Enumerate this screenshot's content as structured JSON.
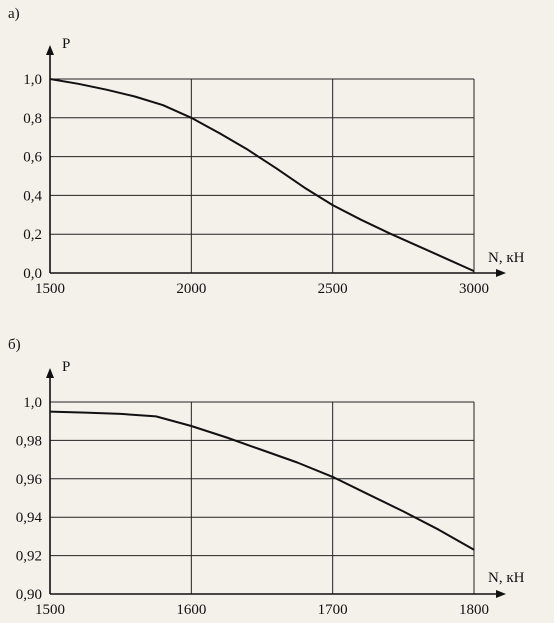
{
  "colors": {
    "background": "#f4f1ea",
    "ink": "#111111",
    "grid": "#222222"
  },
  "chart_data": [
    {
      "panel": "а)",
      "type": "line",
      "xlabel": "N, кН",
      "ylabel": "P",
      "xlim": [
        1500,
        3000
      ],
      "ylim": [
        0.0,
        1.0
      ],
      "x_ticks": [
        1500,
        2000,
        2500,
        3000
      ],
      "x_tick_labels": [
        "1500",
        "2000",
        "2500",
        "3000"
      ],
      "y_ticks": [
        0.0,
        0.2,
        0.4,
        0.6,
        0.8,
        1.0
      ],
      "y_tick_labels": [
        "0,0",
        "0,2",
        "0,4",
        "0,6",
        "0,8",
        "1,0"
      ],
      "grid": true,
      "series": [
        {
          "x": [
            1500,
            1600,
            1700,
            1800,
            1900,
            2000,
            2100,
            2200,
            2300,
            2400,
            2500,
            2600,
            2700,
            2800,
            2900,
            3000
          ],
          "y": [
            1.0,
            0.975,
            0.945,
            0.91,
            0.865,
            0.8,
            0.72,
            0.635,
            0.54,
            0.44,
            0.35,
            0.275,
            0.205,
            0.14,
            0.075,
            0.01
          ]
        }
      ]
    },
    {
      "panel": "б)",
      "type": "line",
      "xlabel": "N, кН",
      "ylabel": "P",
      "xlim": [
        1500,
        1800
      ],
      "ylim": [
        0.9,
        1.0
      ],
      "x_ticks": [
        1500,
        1600,
        1700,
        1800
      ],
      "x_tick_labels": [
        "1500",
        "1600",
        "1700",
        "1800"
      ],
      "y_ticks": [
        0.9,
        0.92,
        0.94,
        0.96,
        0.98,
        1.0
      ],
      "y_tick_labels": [
        "0,90",
        "0,92",
        "0,94",
        "0,96",
        "0,98",
        "1,0"
      ],
      "grid": true,
      "series": [
        {
          "x": [
            1500,
            1525,
            1550,
            1575,
            1600,
            1625,
            1650,
            1675,
            1700,
            1725,
            1750,
            1775,
            1800
          ],
          "y": [
            0.995,
            0.9945,
            0.9938,
            0.9925,
            0.9875,
            0.9815,
            0.975,
            0.9685,
            0.961,
            0.952,
            0.943,
            0.9335,
            0.923
          ]
        }
      ]
    }
  ]
}
